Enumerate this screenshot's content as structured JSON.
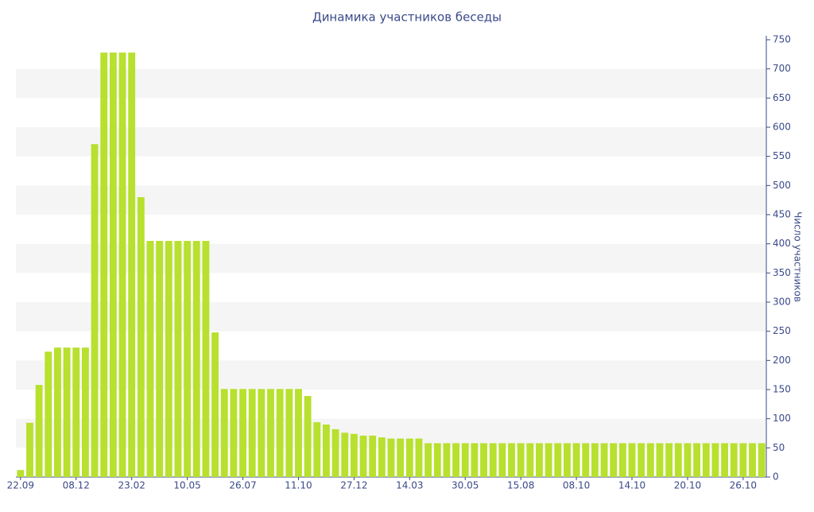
{
  "chart_data": {
    "type": "bar",
    "title": "Динамика участников беседы",
    "y_label": "Число участников",
    "categories": [
      "22.09",
      null,
      null,
      null,
      null,
      null,
      "08.12",
      null,
      null,
      null,
      null,
      null,
      "23.02",
      null,
      null,
      null,
      null,
      null,
      "10.05",
      null,
      null,
      null,
      null,
      null,
      "26.07",
      null,
      null,
      null,
      null,
      null,
      "11.10",
      null,
      null,
      null,
      null,
      null,
      "27.12",
      null,
      null,
      null,
      null,
      null,
      "14.03",
      null,
      null,
      null,
      null,
      null,
      "30.05",
      null,
      null,
      null,
      null,
      null,
      "15.08",
      null,
      null,
      null,
      null,
      null,
      "08.10",
      null,
      null,
      null,
      null,
      null,
      "14.10",
      null,
      null,
      null,
      null,
      null,
      "20.10",
      null,
      null,
      null,
      null,
      null,
      "26.10",
      null,
      null
    ],
    "values": [
      12,
      93,
      158,
      215,
      222,
      222,
      222,
      222,
      571,
      728,
      728,
      728,
      728,
      480,
      405,
      405,
      405,
      405,
      405,
      405,
      405,
      248,
      151,
      151,
      151,
      151,
      151,
      151,
      151,
      151,
      151,
      139,
      94,
      90,
      82,
      76,
      74,
      71,
      71,
      68,
      66,
      66,
      66,
      66,
      58,
      58,
      58,
      58,
      58,
      58,
      58,
      58,
      58,
      58,
      58,
      58,
      58,
      58,
      58,
      58,
      58,
      58,
      58,
      58,
      58,
      58,
      58,
      58,
      58,
      58,
      58,
      58,
      58,
      58,
      58,
      58,
      58,
      58,
      58,
      58,
      58
    ],
    "color": "#b8e02e",
    "ylim": [
      0,
      750
    ],
    "yticks": [
      0,
      50,
      100,
      150,
      200,
      250,
      300,
      350,
      400,
      450,
      500,
      550,
      600,
      650,
      700,
      750
    ],
    "grid": "bands",
    "y_axis_side": "right"
  }
}
